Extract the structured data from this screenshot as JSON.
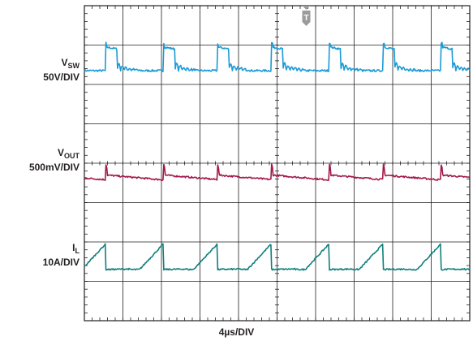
{
  "chart_data": {
    "type": "line",
    "title": "",
    "xlabel": "4µs/DIV",
    "trigger_marker": "T",
    "grid": {
      "divisions_x": 10,
      "divisions_y": 8,
      "minor_ticks_per_div": 5
    },
    "channels": [
      {
        "name_main": "V",
        "name_sub": "SW",
        "scale": "50V/DIV",
        "color": "#1b9ad6",
        "waveform": "switch-node",
        "baseline_div": 6.35,
        "high_div": 6.95,
        "switch_times_div": [
          0.55,
          2.05,
          3.45,
          4.85,
          6.35,
          7.75,
          9.25
        ],
        "on_time_div": 0.3,
        "ringing": true
      },
      {
        "name_main": "V",
        "name_sub": "OUT",
        "scale": "500mV/DIV",
        "color": "#a3184c",
        "waveform": "output-ripple",
        "baseline_div": 3.6,
        "high_div": 3.85,
        "switch_times_div": [
          0.55,
          2.05,
          3.45,
          4.85,
          6.35,
          7.75,
          9.25
        ]
      },
      {
        "name_main": "I",
        "name_sub": "L",
        "scale": "10A/DIV",
        "color": "#0f7f7b",
        "waveform": "inductor-current",
        "baseline_div": 1.3,
        "high_div": 1.95,
        "switch_times_div": [
          0.55,
          2.05,
          3.45,
          4.85,
          6.35,
          7.75,
          9.25
        ]
      }
    ]
  }
}
